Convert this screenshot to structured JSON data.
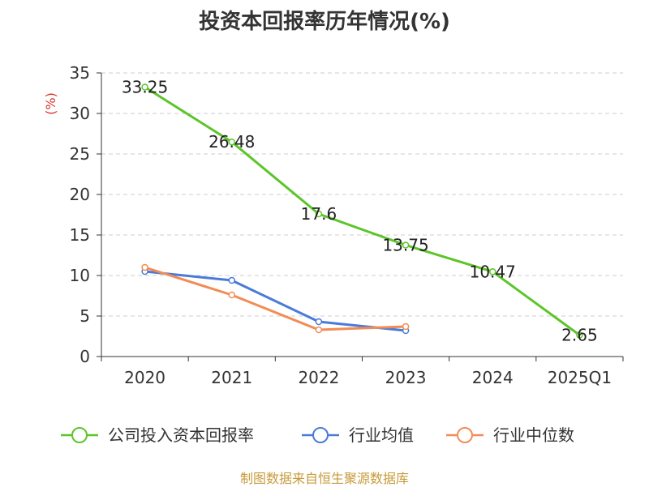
{
  "title": "投资本回报率历年情况(%)",
  "source": "制图数据来自恒生聚源数据库",
  "chart_data": {
    "type": "line",
    "title": "投资本回报率历年情况(%)",
    "ylabel": "(%)",
    "ylim": [
      0,
      35
    ],
    "yticks": [
      0,
      5,
      10,
      15,
      20,
      25,
      30,
      35
    ],
    "grid": true,
    "legend_position": "bottom",
    "categories": [
      "2020",
      "2021",
      "2022",
      "2023",
      "2024",
      "2025Q1"
    ],
    "series": [
      {
        "name": "公司投入资本回报率",
        "color": "#5cc52a",
        "labels": true,
        "values": [
          33.25,
          26.48,
          17.6,
          13.75,
          10.47,
          2.65
        ]
      },
      {
        "name": "行业均值",
        "color": "#4a7bd8",
        "labels": false,
        "values": [
          10.5,
          9.4,
          4.3,
          3.2,
          null,
          null
        ]
      },
      {
        "name": "行业中位数",
        "color": "#f28c55",
        "labels": false,
        "values": [
          11.0,
          7.6,
          3.3,
          3.7,
          null,
          null
        ]
      }
    ]
  }
}
